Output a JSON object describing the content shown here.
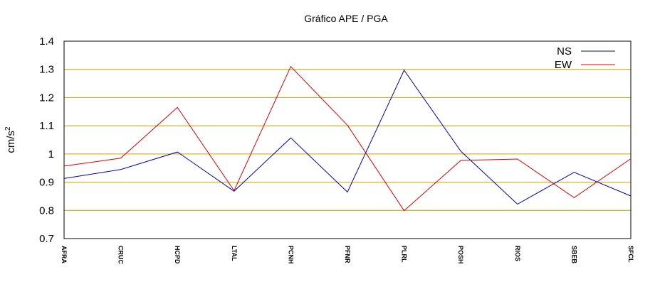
{
  "chart_data": {
    "type": "line",
    "title": "Gráfico  APE / PGA",
    "xlabel": "",
    "ylabel": "cm/s",
    "ylabel_superscript": "2",
    "ylim": [
      0.7,
      1.4
    ],
    "yticks": [
      "0.7",
      "0.8",
      "0.9",
      "1",
      "1.1",
      "1.2",
      "1.3",
      "1.4"
    ],
    "grid": "horizontal",
    "legend_position": "top-right",
    "categories": [
      "AFRA",
      "CRUC",
      "HCPD",
      "LTAL",
      "PCNH",
      "PFNR",
      "PLRL",
      "POSH",
      "RIOS",
      "SBEB",
      "SFCL"
    ],
    "series": [
      {
        "name": "NS",
        "color": "#0000bb",
        "values": [
          0.913,
          0.945,
          1.007,
          0.868,
          1.057,
          0.865,
          1.297,
          1.01,
          0.822,
          0.935,
          0.851
        ]
      },
      {
        "name": "EW",
        "color": "#dd0000",
        "values": [
          0.957,
          0.985,
          1.165,
          0.87,
          1.31,
          1.102,
          0.799,
          0.977,
          0.982,
          0.845,
          0.983
        ]
      }
    ]
  }
}
